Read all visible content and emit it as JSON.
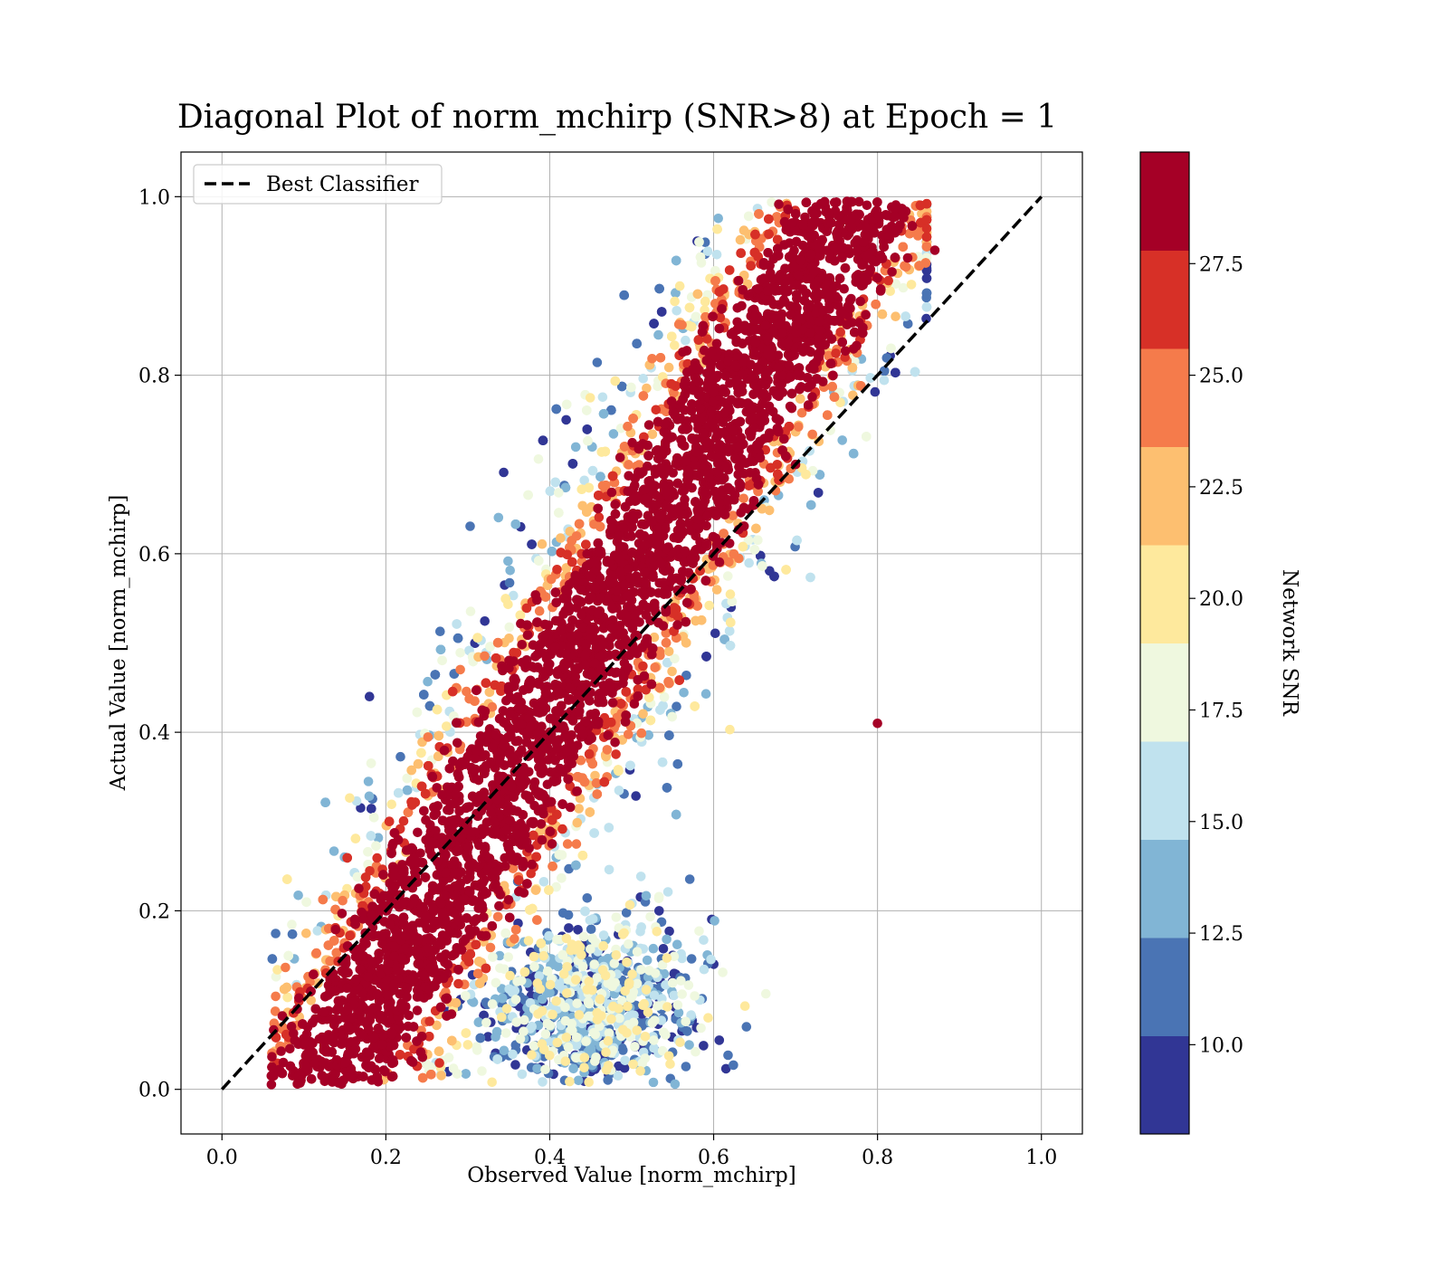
{
  "chart_data": {
    "type": "scatter",
    "title": "Diagonal Plot of norm_mchirp (SNR>8) at Epoch = 1",
    "xlabel": "Observed Value [norm_mchirp]",
    "ylabel": "Actual Value [norm_mchirp]",
    "xlim": [
      -0.05,
      1.05
    ],
    "ylim": [
      -0.05,
      1.05
    ],
    "xticks": [
      "0.0",
      "0.2",
      "0.4",
      "0.6",
      "0.8",
      "1.0"
    ],
    "yticks": [
      "0.0",
      "0.2",
      "0.4",
      "0.6",
      "0.8",
      "1.0"
    ],
    "grid": true,
    "legend": {
      "placement": "upper-left",
      "entries": [
        {
          "label": "Best Classifier",
          "style": "dashed-black-line"
        }
      ]
    },
    "reference_line": {
      "name": "Best Classifier",
      "x": [
        0,
        1
      ],
      "y": [
        0,
        1
      ],
      "color": "#000000",
      "dash": "dashed"
    },
    "colorbar": {
      "label": "Network SNR",
      "range": [
        8,
        30
      ],
      "tick_values": [
        10.0,
        12.5,
        15.0,
        17.5,
        20.0,
        22.5,
        25.0,
        27.5
      ],
      "tick_labels": [
        "10.0",
        "12.5",
        "15.0",
        "17.5",
        "20.0",
        "22.5",
        "25.0",
        "27.5"
      ],
      "colormap": "RdYlBu_r (discrete, 10 bins)",
      "bin_colors": [
        "#313695",
        "#4a74b4",
        "#81b5d5",
        "#c0e2ee",
        "#eff8df",
        "#fee99d",
        "#fdbf70",
        "#f57b4b",
        "#d73027",
        "#a50026"
      ]
    },
    "point_colors": {
      "low_snr": "#313695",
      "mid_snr": "#fee99d",
      "high_snr": "#a50026"
    },
    "sampled_points": [
      {
        "x": 0.1,
        "y": 0.05,
        "snr": 29
      },
      {
        "x": 0.2,
        "y": 0.2,
        "snr": 29
      },
      {
        "x": 0.3,
        "y": 0.3,
        "snr": 29
      },
      {
        "x": 0.4,
        "y": 0.4,
        "snr": 29
      },
      {
        "x": 0.5,
        "y": 0.5,
        "snr": 29
      },
      {
        "x": 0.6,
        "y": 0.6,
        "snr": 29
      },
      {
        "x": 0.7,
        "y": 0.7,
        "snr": 29
      },
      {
        "x": 0.75,
        "y": 0.9,
        "snr": 29
      },
      {
        "x": 0.45,
        "y": 0.08,
        "snr": 11
      },
      {
        "x": 0.4,
        "y": 0.12,
        "snr": 14
      },
      {
        "x": 0.55,
        "y": 0.15,
        "snr": 10
      },
      {
        "x": 0.42,
        "y": 0.75,
        "snr": 9
      },
      {
        "x": 0.58,
        "y": 0.95,
        "snr": 9
      },
      {
        "x": 0.64,
        "y": 0.07,
        "snr": 11
      },
      {
        "x": 0.18,
        "y": 0.44,
        "snr": 9
      },
      {
        "x": 0.8,
        "y": 0.41,
        "snr": 29
      },
      {
        "x": 0.87,
        "y": 0.94,
        "snr": 29
      },
      {
        "x": 0.3,
        "y": 0.05,
        "snr": 20
      }
    ]
  }
}
